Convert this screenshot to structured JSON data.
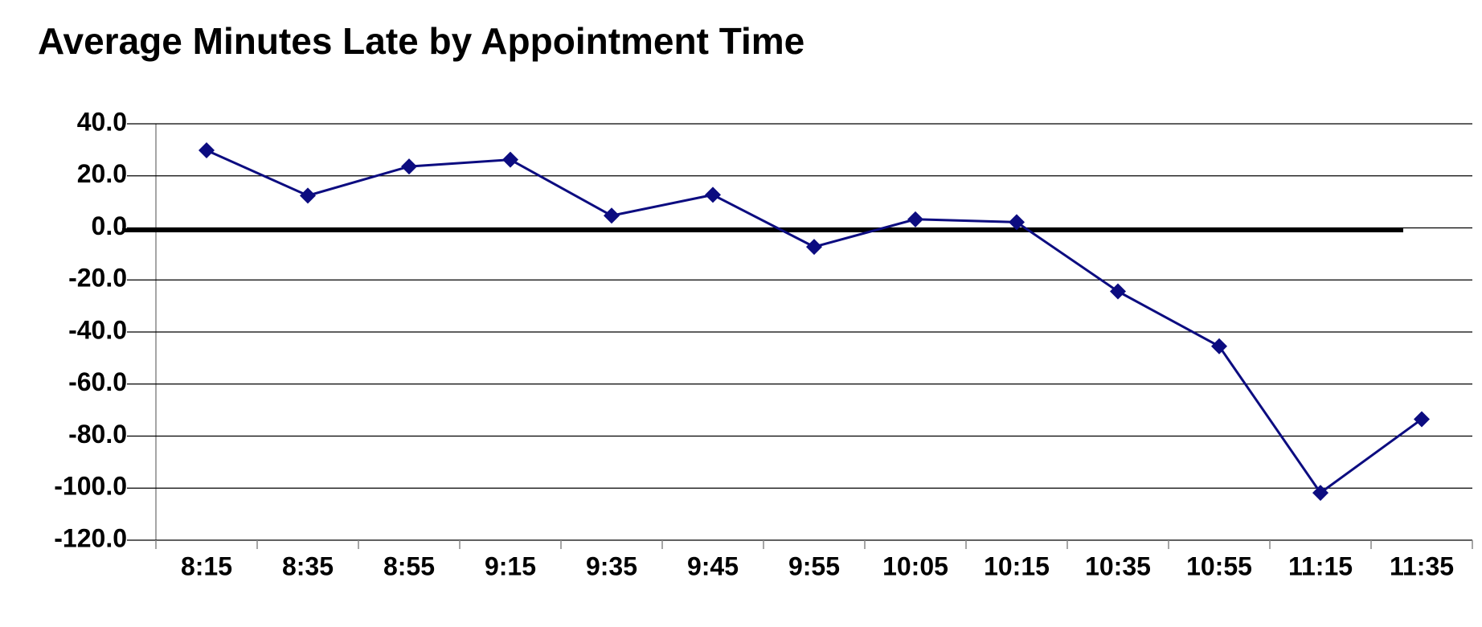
{
  "chart_data": {
    "type": "line",
    "title": "Average Minutes Late by Appointment Time",
    "categories": [
      "8:15",
      "8:35",
      "8:55",
      "9:15",
      "9:35",
      "9:45",
      "9:55",
      "10:05",
      "10:15",
      "10:35",
      "10:55",
      "11:15",
      "11:35"
    ],
    "values": [
      29.8,
      12.4,
      23.6,
      26.2,
      4.7,
      12.7,
      -7.3,
      3.3,
      2.2,
      -24.4,
      -45.5,
      -101.8,
      -73.5
    ],
    "color": "#0c0c80",
    "ylim": [
      -120,
      40
    ],
    "yticks": [
      {
        "value": -120,
        "label": "-120.0"
      },
      {
        "value": -100,
        "label": "-100.0"
      },
      {
        "value": -80,
        "label": "-80.0"
      },
      {
        "value": -60,
        "label": "-60.0"
      },
      {
        "value": -40,
        "label": "-40.0"
      },
      {
        "value": -20,
        "label": "-20.0"
      },
      {
        "value": 0,
        "label": "0.0"
      },
      {
        "value": 20,
        "label": "20.0"
      },
      {
        "value": 40,
        "label": "40.0"
      }
    ],
    "grid": true
  }
}
